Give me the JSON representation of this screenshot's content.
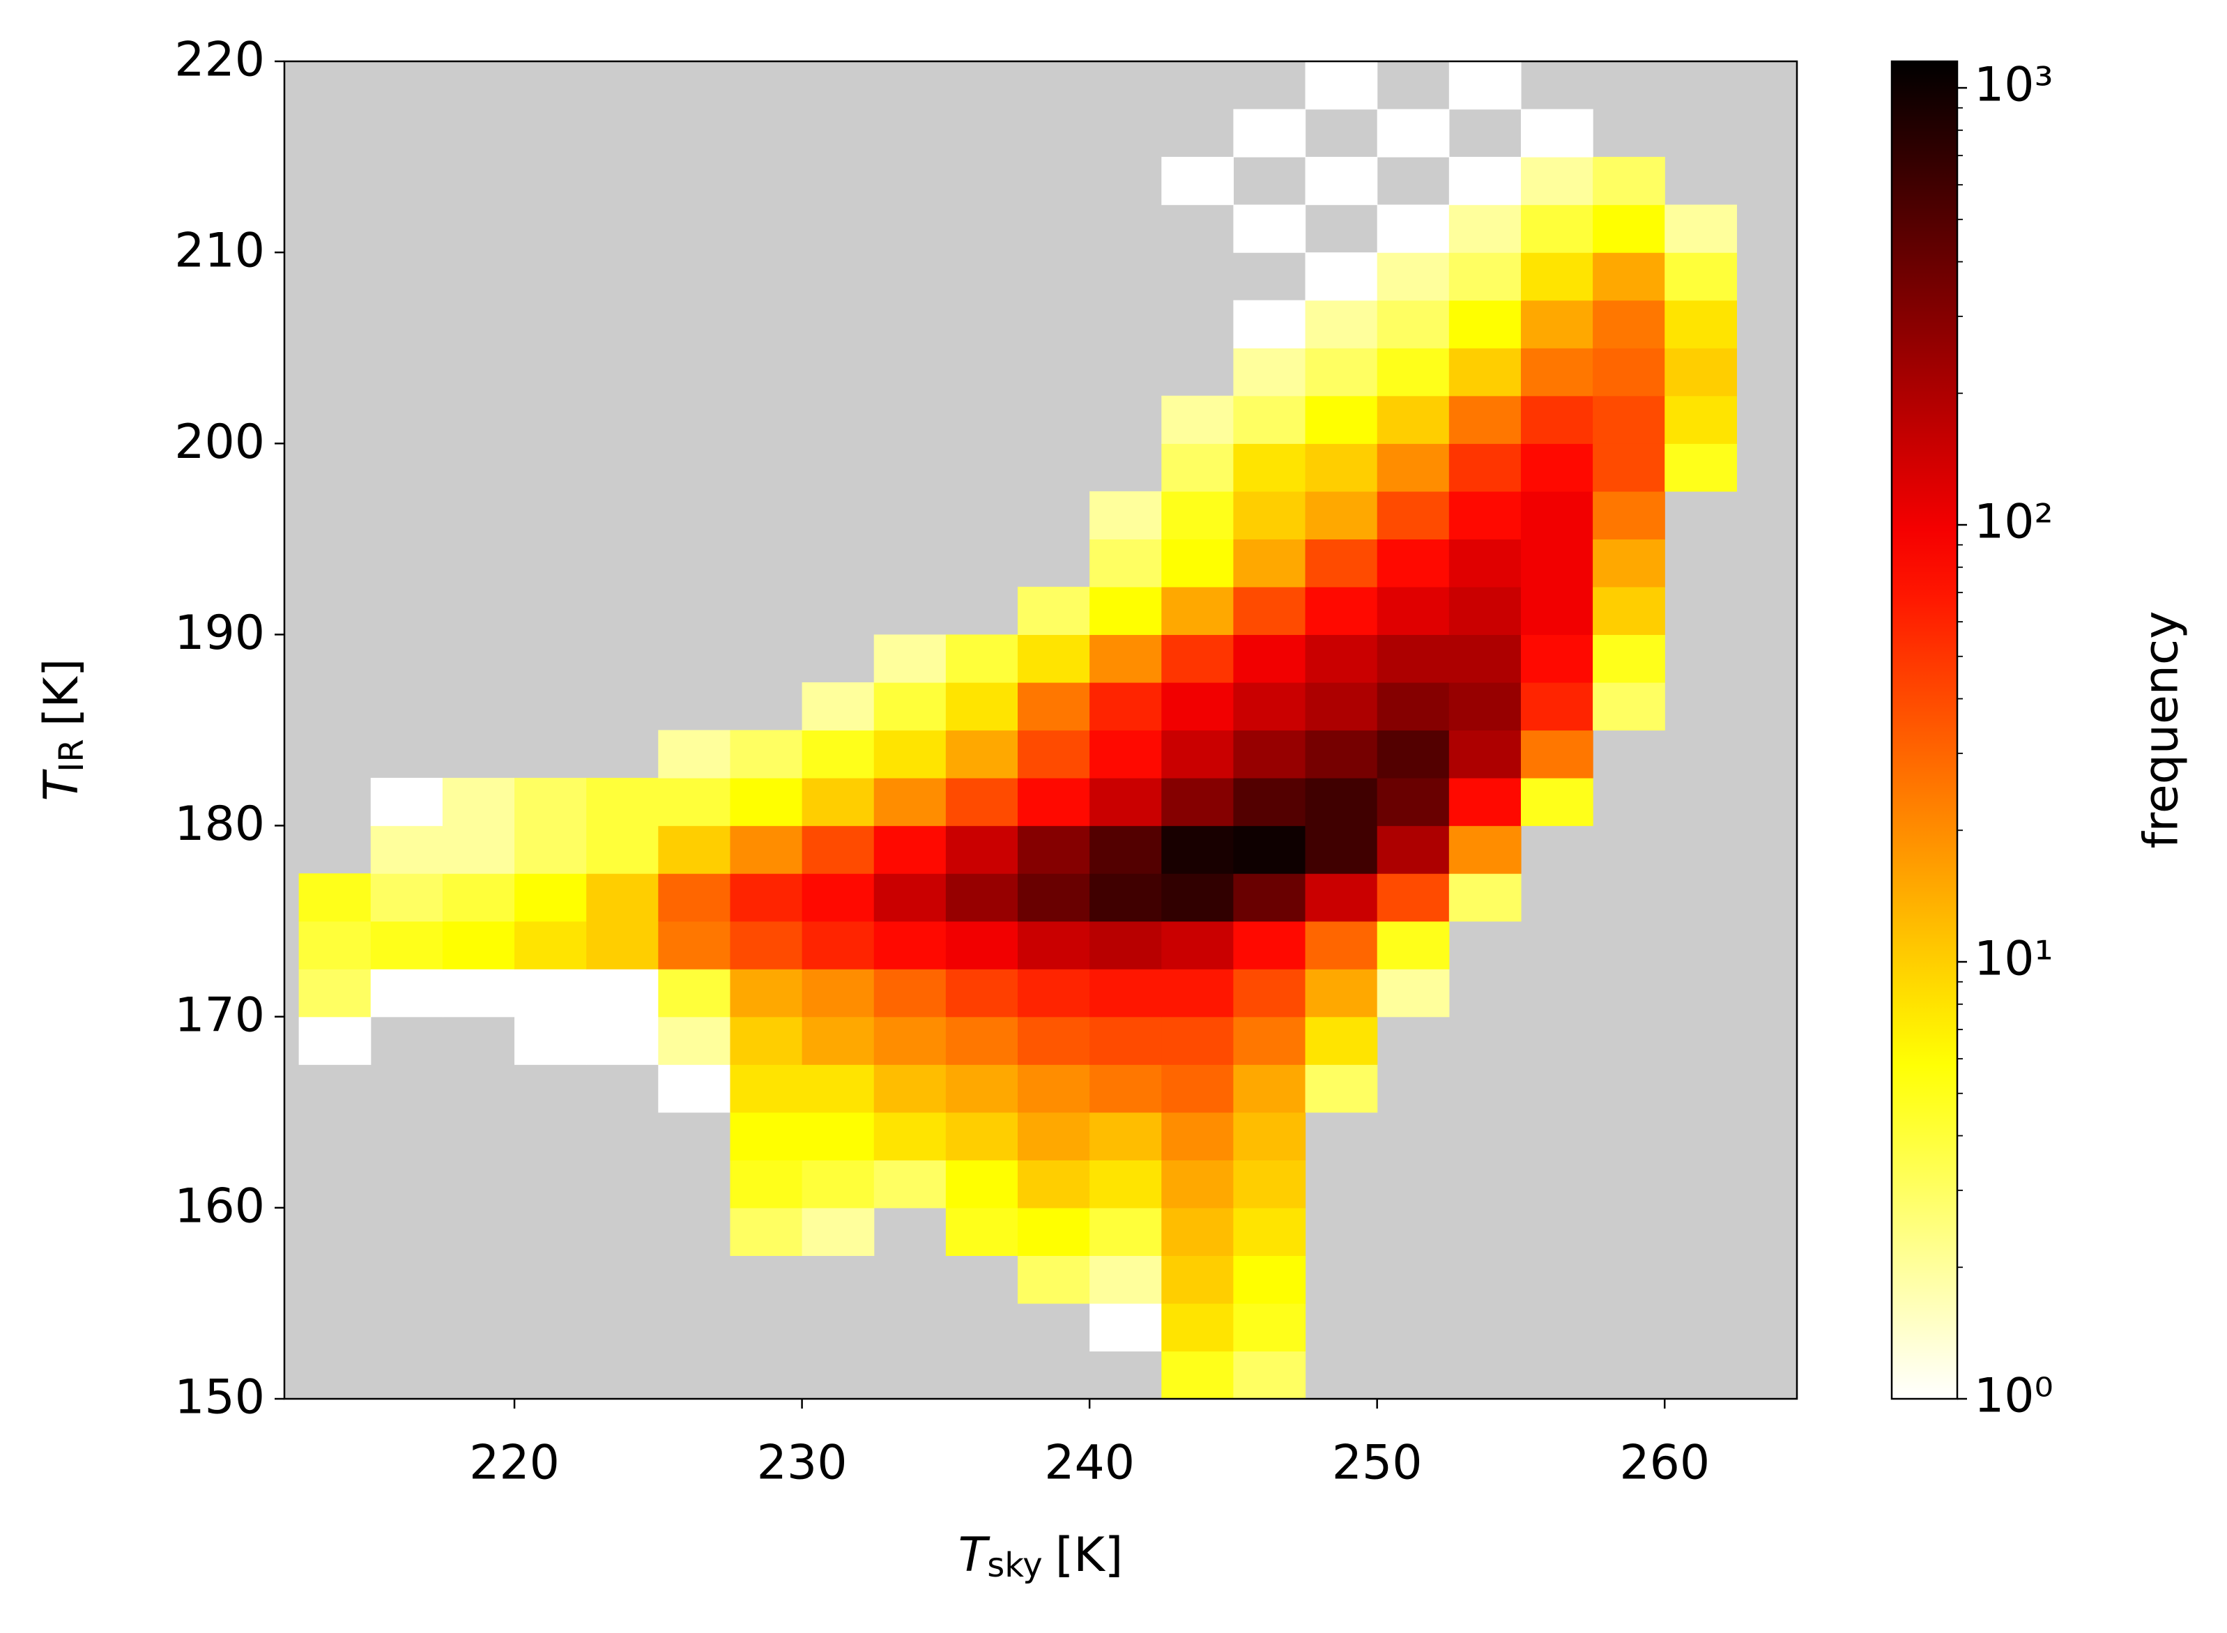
{
  "chart_data": {
    "type": "histogram2d",
    "xlabel": {
      "symbol": "T",
      "subscript": "sky",
      "unit": "[K]"
    },
    "ylabel": {
      "symbol": "T",
      "subscript": "IR",
      "unit": "[K]"
    },
    "colorbar_label": "frequency",
    "colormap": "hot_r",
    "background_color": "#cccccc",
    "log_color_scale": true,
    "xlim": [
      212,
      264.6
    ],
    "ylim": [
      150,
      220
    ],
    "xticks": [
      220,
      230,
      240,
      250,
      260
    ],
    "yticks": [
      150,
      160,
      170,
      180,
      190,
      200,
      210,
      220
    ],
    "clim": [
      1,
      1150
    ],
    "cticks": [
      {
        "value": 1,
        "label": "10⁰"
      },
      {
        "value": 10,
        "label": "10¹"
      },
      {
        "value": 100,
        "label": "10²"
      },
      {
        "value": 1000,
        "label": "10³"
      }
    ],
    "cminor_ticks": [
      2,
      3,
      4,
      5,
      6,
      7,
      8,
      9,
      20,
      30,
      40,
      50,
      60,
      70,
      80,
      90,
      200,
      300,
      400,
      500,
      600,
      700,
      800,
      900
    ],
    "x_bins": [
      212.5,
      215,
      217.5,
      220,
      222.5,
      225,
      227.5,
      230,
      232.5,
      235,
      237.5,
      240,
      242.5,
      245,
      247.5,
      250,
      252.5,
      255,
      257.5,
      260,
      262.5
    ],
    "y_bins": [
      150,
      152.5,
      155,
      157.5,
      160,
      162.5,
      165,
      167.5,
      170,
      172.5,
      175,
      177.5,
      180,
      182.5,
      185,
      187.5,
      190,
      192.5,
      195,
      197.5,
      200,
      202.5,
      205,
      207.5,
      210,
      212.5,
      215,
      217.5,
      220
    ],
    "counts": [
      [
        null,
        null,
        null,
        null,
        null,
        null,
        null,
        null,
        null,
        null,
        null,
        null,
        5,
        3,
        null,
        null,
        null,
        null,
        null,
        null
      ],
      [
        null,
        null,
        null,
        null,
        null,
        null,
        null,
        null,
        null,
        null,
        null,
        1,
        8,
        5,
        null,
        null,
        null,
        null,
        null,
        null
      ],
      [
        null,
        null,
        null,
        null,
        null,
        null,
        null,
        null,
        null,
        null,
        3,
        2,
        10,
        6,
        null,
        null,
        null,
        null,
        null,
        null
      ],
      [
        null,
        null,
        null,
        null,
        null,
        null,
        3,
        2,
        null,
        5,
        6,
        4,
        12,
        8,
        null,
        null,
        null,
        null,
        null,
        null
      ],
      [
        null,
        null,
        null,
        null,
        null,
        null,
        5,
        4,
        3,
        6,
        10,
        8,
        15,
        10,
        null,
        null,
        null,
        null,
        null,
        null
      ],
      [
        null,
        null,
        null,
        null,
        null,
        null,
        6,
        6,
        8,
        10,
        15,
        12,
        20,
        12,
        null,
        null,
        null,
        null,
        null,
        null
      ],
      [
        null,
        null,
        null,
        null,
        null,
        1,
        8,
        8,
        12,
        15,
        20,
        25,
        30,
        15,
        3,
        null,
        null,
        null,
        null,
        null
      ],
      [
        1,
        null,
        null,
        1,
        1,
        2,
        10,
        15,
        20,
        25,
        35,
        40,
        40,
        25,
        8,
        null,
        null,
        null,
        null,
        null
      ],
      [
        3,
        1,
        1,
        1,
        1,
        4,
        15,
        20,
        30,
        45,
        60,
        70,
        70,
        40,
        15,
        2,
        null,
        null,
        null,
        null
      ],
      [
        4,
        5,
        6,
        8,
        10,
        25,
        40,
        60,
        80,
        100,
        150,
        180,
        150,
        80,
        30,
        5,
        null,
        null,
        null,
        null
      ],
      [
        5,
        3,
        4,
        6,
        10,
        30,
        60,
        80,
        150,
        250,
        400,
        600,
        700,
        400,
        150,
        40,
        3,
        null,
        null,
        null
      ],
      [
        null,
        2,
        2,
        3,
        4,
        10,
        20,
        40,
        80,
        150,
        300,
        500,
        900,
        1000,
        600,
        200,
        20,
        null,
        null,
        null
      ],
      [
        null,
        1,
        2,
        3,
        4,
        4,
        6,
        10,
        20,
        40,
        80,
        150,
        300,
        500,
        600,
        400,
        80,
        5,
        null,
        null
      ],
      [
        null,
        null,
        null,
        null,
        null,
        2,
        3,
        5,
        8,
        15,
        40,
        80,
        150,
        250,
        350,
        500,
        200,
        25,
        null,
        null
      ],
      [
        null,
        null,
        null,
        null,
        null,
        null,
        null,
        2,
        4,
        8,
        25,
        60,
        100,
        150,
        200,
        300,
        250,
        60,
        3,
        null
      ],
      [
        null,
        null,
        null,
        null,
        null,
        null,
        null,
        null,
        2,
        4,
        8,
        20,
        50,
        100,
        150,
        200,
        200,
        80,
        5,
        null
      ],
      [
        null,
        null,
        null,
        null,
        null,
        null,
        null,
        null,
        null,
        null,
        3,
        6,
        15,
        40,
        80,
        120,
        150,
        100,
        10,
        null
      ],
      [
        null,
        null,
        null,
        null,
        null,
        null,
        null,
        null,
        null,
        null,
        null,
        3,
        6,
        15,
        40,
        80,
        120,
        100,
        15,
        null
      ],
      [
        null,
        null,
        null,
        null,
        null,
        null,
        null,
        null,
        null,
        null,
        null,
        2,
        5,
        10,
        15,
        40,
        80,
        100,
        25,
        null
      ],
      [
        null,
        null,
        null,
        null,
        null,
        null,
        null,
        null,
        null,
        null,
        null,
        null,
        3,
        8,
        10,
        20,
        50,
        80,
        40,
        5
      ],
      [
        null,
        null,
        null,
        null,
        null,
        null,
        null,
        null,
        null,
        null,
        null,
        null,
        2,
        3,
        6,
        10,
        25,
        50,
        40,
        8
      ],
      [
        null,
        null,
        null,
        null,
        null,
        null,
        null,
        null,
        null,
        null,
        null,
        null,
        null,
        2,
        3,
        5,
        10,
        25,
        30,
        10
      ],
      [
        null,
        null,
        null,
        null,
        null,
        null,
        null,
        null,
        null,
        null,
        null,
        null,
        null,
        1,
        2,
        3,
        6,
        15,
        25,
        8
      ],
      [
        null,
        null,
        null,
        null,
        null,
        null,
        null,
        null,
        null,
        null,
        null,
        null,
        null,
        null,
        1,
        2,
        3,
        8,
        15,
        4
      ],
      [
        null,
        null,
        null,
        null,
        null,
        null,
        null,
        null,
        null,
        null,
        null,
        null,
        null,
        1,
        null,
        1,
        2,
        4,
        6,
        2
      ],
      [
        null,
        null,
        null,
        null,
        null,
        null,
        null,
        null,
        null,
        null,
        null,
        null,
        1,
        null,
        1,
        null,
        1,
        2,
        3,
        null
      ],
      [
        null,
        null,
        null,
        null,
        null,
        null,
        null,
        null,
        null,
        null,
        null,
        null,
        null,
        1,
        null,
        1,
        null,
        1,
        null,
        null
      ],
      [
        null,
        null,
        null,
        null,
        null,
        null,
        null,
        null,
        null,
        null,
        null,
        null,
        null,
        null,
        1,
        null,
        1,
        null,
        null,
        null
      ]
    ]
  }
}
